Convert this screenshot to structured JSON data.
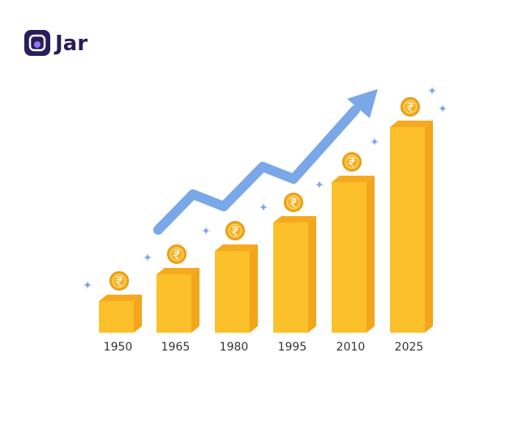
{
  "logo": {
    "name": "Jar"
  },
  "chart": {
    "categories": [
      "1950",
      "1965",
      "1980",
      "1995",
      "2010",
      "2025"
    ]
  }
}
